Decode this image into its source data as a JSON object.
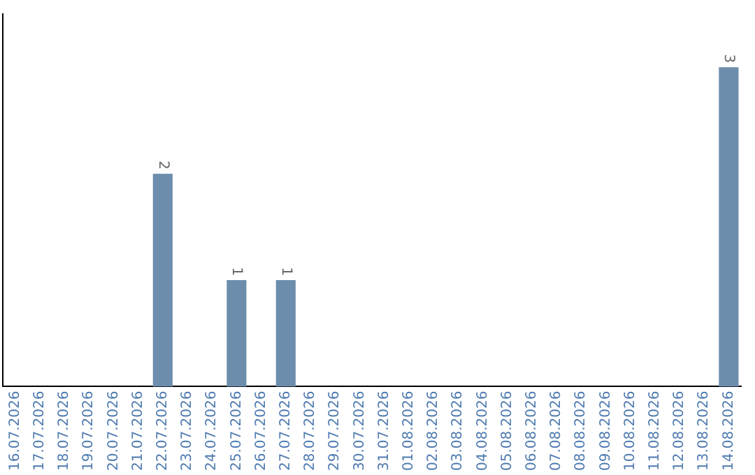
{
  "chart_data": {
    "type": "bar",
    "categories": [
      "16.07.2026",
      "17.07.2026",
      "18.07.2026",
      "19.07.2026",
      "20.07.2026",
      "21.07.2026",
      "22.07.2026",
      "23.07.2026",
      "24.07.2026",
      "25.07.2026",
      "26.07.2026",
      "27.07.2026",
      "28.07.2026",
      "29.07.2026",
      "30.07.2026",
      "31.07.2026",
      "01.08.2026",
      "02.08.2026",
      "03.08.2026",
      "04.08.2026",
      "05.08.2026",
      "06.08.2026",
      "07.08.2026",
      "08.08.2026",
      "09.08.2026",
      "10.08.2026",
      "11.08.2026",
      "12.08.2026",
      "13.08.2026",
      "14.08.2026"
    ],
    "values": [
      null,
      null,
      null,
      null,
      null,
      null,
      2,
      null,
      null,
      1,
      null,
      1,
      null,
      null,
      null,
      null,
      null,
      null,
      null,
      null,
      null,
      null,
      null,
      null,
      null,
      null,
      null,
      null,
      null,
      3
    ],
    "color": "#6d8dac",
    "data_labels": true,
    "grid": false,
    "legend": false,
    "tick_labels": "x"
  }
}
